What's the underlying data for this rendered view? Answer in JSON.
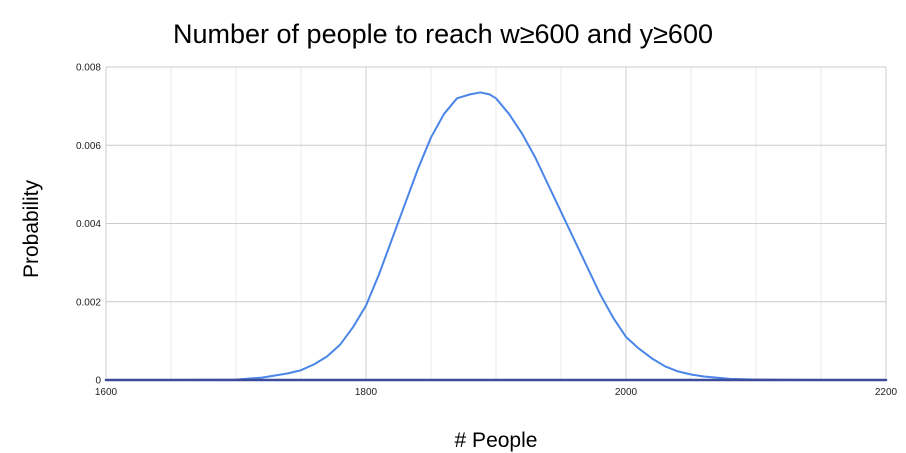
{
  "chart_data": {
    "type": "line",
    "title": "Number of people to reach w≥600 and y≥600",
    "xlabel": "# People",
    "ylabel": "Probability",
    "xlim": [
      1600,
      2200
    ],
    "ylim": [
      0,
      0.008
    ],
    "x_ticks": [
      "1600",
      "1800",
      "2000",
      "2200"
    ],
    "y_ticks": [
      "0",
      "0.002",
      "0.004",
      "0.006",
      "0.008"
    ],
    "grid": true,
    "legend": "none",
    "series": [
      {
        "color": "#4a86e8",
        "x": [
          1600,
          1650,
          1700,
          1720,
          1740,
          1750,
          1760,
          1770,
          1780,
          1790,
          1800,
          1810,
          1820,
          1830,
          1840,
          1850,
          1860,
          1870,
          1880,
          1888,
          1895,
          1900,
          1910,
          1920,
          1930,
          1940,
          1950,
          1960,
          1970,
          1980,
          1990,
          2000,
          2010,
          2020,
          2030,
          2040,
          2050,
          2060,
          2080,
          2100,
          2150,
          2200
        ],
        "values": [
          0,
          0,
          1e-05,
          6e-05,
          0.00017,
          0.00025,
          0.0004,
          0.0006,
          0.0009,
          0.00135,
          0.0019,
          0.0027,
          0.0036,
          0.0045,
          0.0054,
          0.0062,
          0.0068,
          0.0072,
          0.0073,
          0.00735,
          0.0073,
          0.0072,
          0.0068,
          0.0063,
          0.0057,
          0.005,
          0.0043,
          0.0036,
          0.0029,
          0.0022,
          0.0016,
          0.0011,
          0.0008,
          0.00055,
          0.00035,
          0.00022,
          0.00014,
          9e-05,
          3e-05,
          1e-05,
          0,
          0
        ]
      },
      {
        "color": "#3c4b9a",
        "x": [
          1600,
          2200
        ],
        "values": [
          0,
          0
        ]
      }
    ]
  }
}
